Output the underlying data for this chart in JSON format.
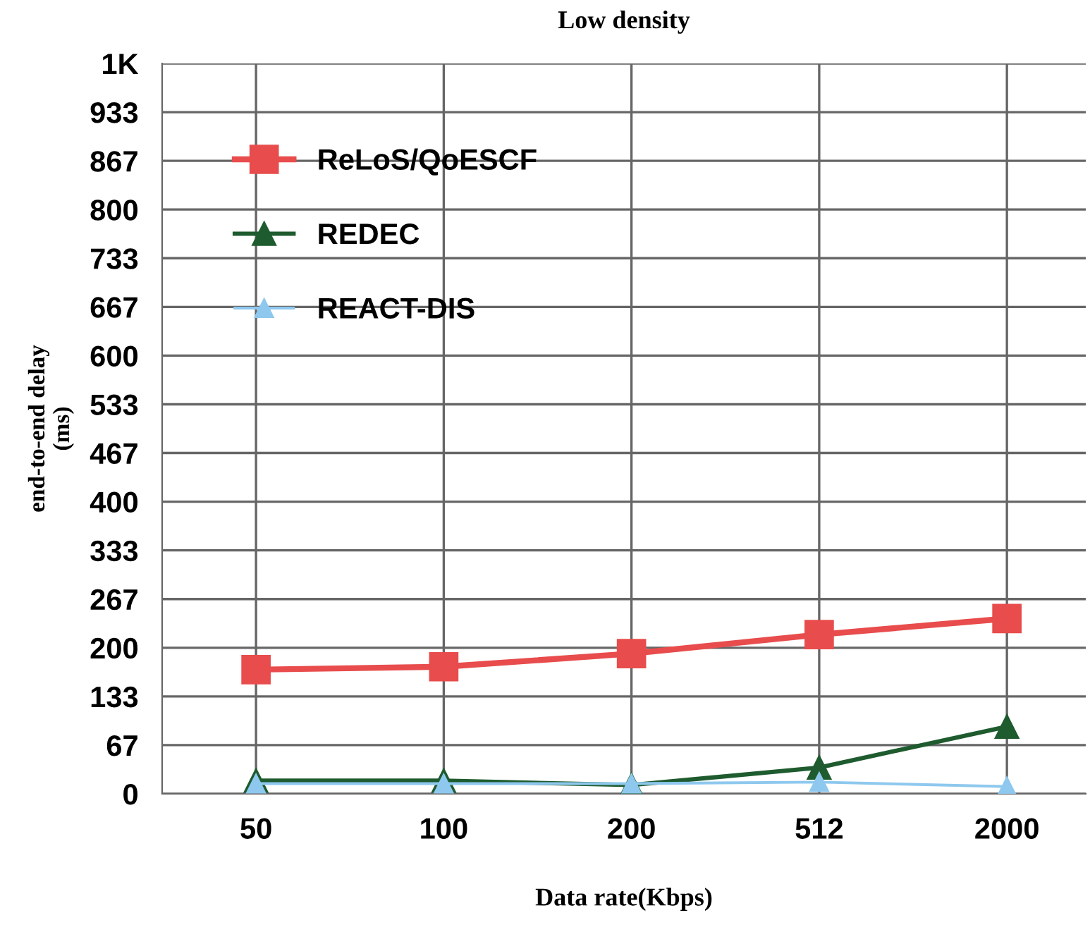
{
  "chart_data": {
    "type": "line",
    "title": "Low density",
    "xlabel": "Data rate(Kbps)",
    "ylabel": "end-to-end delay\n(ms)",
    "categories": [
      "50",
      "100",
      "200",
      "512",
      "2000"
    ],
    "series": [
      {
        "name": "ReLoS/QoESCF",
        "color": "#e84c4c",
        "marker": "square",
        "values": [
          170,
          174,
          192,
          218,
          240
        ]
      },
      {
        "name": "REDEC",
        "color": "#1e5b2e",
        "marker": "triangle",
        "values": [
          18,
          18,
          12,
          36,
          92
        ]
      },
      {
        "name": "REACT-DIS",
        "color": "#8ec8ee",
        "marker": "triangle",
        "values": [
          14,
          14,
          14,
          16,
          10
        ]
      }
    ],
    "ylim": [
      0,
      1000
    ],
    "yticks": [
      0,
      {
        "value": 66.67,
        "label": "67"
      },
      {
        "value": 133.33,
        "label": "133"
      },
      200,
      {
        "value": 266.67,
        "label": "267"
      },
      {
        "value": 333.33,
        "label": "333"
      },
      400,
      {
        "value": 466.67,
        "label": "467"
      },
      {
        "value": 533.33,
        "label": "533"
      },
      600,
      {
        "value": 666.67,
        "label": "667"
      },
      {
        "value": 733.33,
        "label": "733"
      },
      800,
      {
        "value": 866.67,
        "label": "867"
      },
      {
        "value": 933.33,
        "label": "933"
      },
      {
        "value": 1000,
        "label": "1K"
      }
    ],
    "grid": true,
    "legend": "top left",
    "line_style": "solid"
  }
}
